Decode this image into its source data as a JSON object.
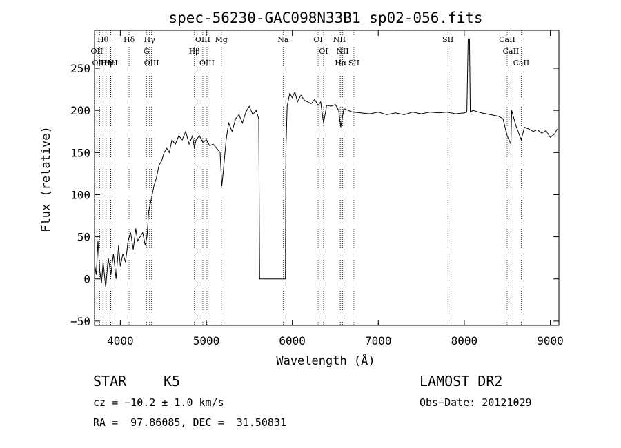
{
  "chart_data": {
    "type": "line",
    "title": "spec-56230-GAC098N33B1_sp02-056.fits",
    "xlabel": "Wavelength (Å)",
    "ylabel": "Flux (relative)",
    "xlim": [
      3700,
      9100
    ],
    "ylim": [
      -55,
      295
    ],
    "xticks": [
      4000,
      5000,
      6000,
      7000,
      8000,
      9000
    ],
    "yticks": [
      -50,
      0,
      50,
      100,
      150,
      200,
      250
    ],
    "grid": false,
    "series": [
      {
        "points": [
          [
            3700,
            18
          ],
          [
            3720,
            5
          ],
          [
            3740,
            45
          ],
          [
            3760,
            10
          ],
          [
            3780,
            -5
          ],
          [
            3800,
            20
          ],
          [
            3830,
            -10
          ],
          [
            3860,
            25
          ],
          [
            3890,
            5
          ],
          [
            3920,
            30
          ],
          [
            3950,
            0
          ],
          [
            3980,
            40
          ],
          [
            4000,
            15
          ],
          [
            4030,
            30
          ],
          [
            4060,
            20
          ],
          [
            4090,
            45
          ],
          [
            4120,
            55
          ],
          [
            4150,
            35
          ],
          [
            4180,
            60
          ],
          [
            4200,
            45
          ],
          [
            4230,
            50
          ],
          [
            4260,
            55
          ],
          [
            4290,
            40
          ],
          [
            4310,
            50
          ],
          [
            4330,
            80
          ],
          [
            4360,
            95
          ],
          [
            4390,
            110
          ],
          [
            4420,
            120
          ],
          [
            4450,
            135
          ],
          [
            4480,
            140
          ],
          [
            4510,
            150
          ],
          [
            4540,
            155
          ],
          [
            4570,
            150
          ],
          [
            4600,
            165
          ],
          [
            4640,
            160
          ],
          [
            4680,
            170
          ],
          [
            4720,
            165
          ],
          [
            4760,
            175
          ],
          [
            4800,
            160
          ],
          [
            4840,
            170
          ],
          [
            4861,
            155
          ],
          [
            4880,
            165
          ],
          [
            4920,
            170
          ],
          [
            4960,
            162
          ],
          [
            5000,
            165
          ],
          [
            5040,
            158
          ],
          [
            5080,
            160
          ],
          [
            5120,
            155
          ],
          [
            5160,
            150
          ],
          [
            5180,
            110
          ],
          [
            5200,
            130
          ],
          [
            5230,
            165
          ],
          [
            5260,
            185
          ],
          [
            5300,
            175
          ],
          [
            5340,
            190
          ],
          [
            5380,
            195
          ],
          [
            5420,
            185
          ],
          [
            5460,
            198
          ],
          [
            5500,
            205
          ],
          [
            5540,
            195
          ],
          [
            5580,
            200
          ],
          [
            5610,
            190
          ],
          [
            5620,
            0
          ],
          [
            5650,
            0
          ],
          [
            5700,
            0
          ],
          [
            5750,
            0
          ],
          [
            5800,
            0
          ],
          [
            5850,
            0
          ],
          [
            5900,
            0
          ],
          [
            5920,
            0
          ],
          [
            5925,
            150
          ],
          [
            5940,
            205
          ],
          [
            5970,
            220
          ],
          [
            6000,
            215
          ],
          [
            6030,
            222
          ],
          [
            6060,
            210
          ],
          [
            6100,
            218
          ],
          [
            6140,
            212
          ],
          [
            6180,
            210
          ],
          [
            6220,
            208
          ],
          [
            6260,
            213
          ],
          [
            6300,
            206
          ],
          [
            6330,
            210
          ],
          [
            6363,
            185
          ],
          [
            6400,
            206
          ],
          [
            6450,
            205
          ],
          [
            6500,
            207
          ],
          [
            6540,
            200
          ],
          [
            6563,
            180
          ],
          [
            6600,
            202
          ],
          [
            6650,
            200
          ],
          [
            6700,
            198
          ],
          [
            6800,
            197
          ],
          [
            6900,
            196
          ],
          [
            7000,
            198
          ],
          [
            7100,
            195
          ],
          [
            7200,
            197
          ],
          [
            7300,
            195
          ],
          [
            7400,
            198
          ],
          [
            7500,
            196
          ],
          [
            7600,
            198
          ],
          [
            7700,
            197
          ],
          [
            7800,
            198
          ],
          [
            7900,
            196
          ],
          [
            8000,
            197
          ],
          [
            8030,
            198
          ],
          [
            8045,
            285
          ],
          [
            8060,
            285
          ],
          [
            8070,
            198
          ],
          [
            8100,
            200
          ],
          [
            8200,
            197
          ],
          [
            8300,
            195
          ],
          [
            8400,
            193
          ],
          [
            8450,
            190
          ],
          [
            8498,
            170
          ],
          [
            8542,
            160
          ],
          [
            8550,
            200
          ],
          [
            8600,
            182
          ],
          [
            8662,
            165
          ],
          [
            8700,
            180
          ],
          [
            8750,
            178
          ],
          [
            8800,
            175
          ],
          [
            8850,
            177
          ],
          [
            8900,
            173
          ],
          [
            8950,
            176
          ],
          [
            9000,
            168
          ],
          [
            9050,
            172
          ],
          [
            9080,
            178
          ]
        ]
      }
    ],
    "lines": [
      {
        "label": "Hθ",
        "x": 3798
      },
      {
        "label": "OII",
        "x": 3727
      },
      {
        "label": "OIII",
        "x": 3760
      },
      {
        "label": "Hη",
        "x": 3835
      },
      {
        "label": "H",
        "x": 3889
      },
      {
        "label": "HeI",
        "x": 3889
      },
      {
        "label": "Hδ",
        "x": 4102
      },
      {
        "label": "Hγ",
        "x": 4340
      },
      {
        "label": "G",
        "x": 4304
      },
      {
        "label": "OIII",
        "x": 4363
      },
      {
        "label": "OIII",
        "x": 4959
      },
      {
        "label": "Hβ",
        "x": 4861
      },
      {
        "label": "OIII",
        "x": 5007
      },
      {
        "label": "Mg",
        "x": 5175
      },
      {
        "label": "Na",
        "x": 5893
      },
      {
        "label": "OI",
        "x": 6300
      },
      {
        "label": "OI",
        "x": 6363
      },
      {
        "label": "NII",
        "x": 6548
      },
      {
        "label": "NII",
        "x": 6584
      },
      {
        "label": "Hα",
        "x": 6563
      },
      {
        "label": "SII",
        "x": 6717
      },
      {
        "label": "SII",
        "x": 7810
      },
      {
        "label": "CaII",
        "x": 8498
      },
      {
        "label": "CaII",
        "x": 8542
      },
      {
        "label": "CaII",
        "x": 8662
      }
    ]
  },
  "info": {
    "object_class": "STAR",
    "subclass": "K5",
    "survey": "LAMOST DR2",
    "redshift": "cz = −10.2 ± 1.0 km/s",
    "obs_date": "Obs−Date: 20121029",
    "coords": "RA =  97.86085, DEC =  31.50831"
  }
}
